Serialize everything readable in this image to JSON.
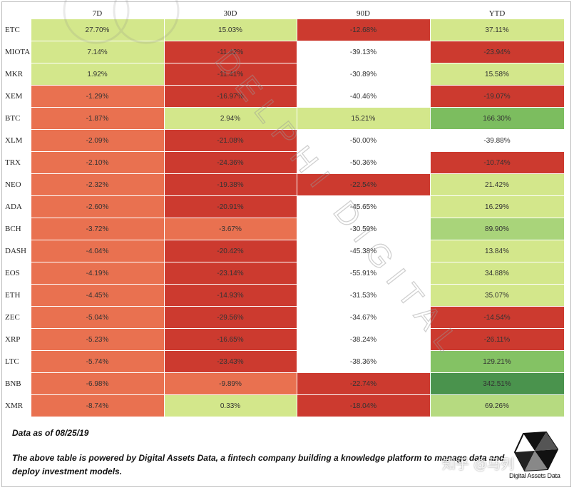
{
  "chart_data": {
    "type": "table",
    "title": "",
    "columns": [
      "7D",
      "30D",
      "90D",
      "YTD"
    ],
    "rows": [
      {
        "coin": "ETC",
        "values": [
          "27.70%",
          "15.03%",
          "-12.68%",
          "37.11%"
        ],
        "colors": [
          "#d3e78b",
          "#d3e78b",
          "#cc3a2f",
          "#d3e78b"
        ]
      },
      {
        "coin": "MIOTA",
        "values": [
          "7.14%",
          "-11.42%",
          "-39.13%",
          "-23.94%"
        ],
        "colors": [
          "#d3e78b",
          "#cc3a2f",
          "#ffffff",
          "#cc3a2f"
        ]
      },
      {
        "coin": "MKR",
        "values": [
          "1.92%",
          "-11.41%",
          "-30.89%",
          "15.58%"
        ],
        "colors": [
          "#d3e78b",
          "#cc3a2f",
          "#ffffff",
          "#d3e78b"
        ]
      },
      {
        "coin": "XEM",
        "values": [
          "-1.29%",
          "-16.97%",
          "-40.46%",
          "-19.07%"
        ],
        "colors": [
          "#e97150",
          "#cc3a2f",
          "#ffffff",
          "#cc3a2f"
        ]
      },
      {
        "coin": "BTC",
        "values": [
          "-1.87%",
          "2.94%",
          "15.21%",
          "166.30%"
        ],
        "colors": [
          "#e97150",
          "#d3e78b",
          "#d3e78b",
          "#7cbd5f"
        ]
      },
      {
        "coin": "XLM",
        "values": [
          "-2.09%",
          "-21.08%",
          "-50.00%",
          "-39.88%"
        ],
        "colors": [
          "#e97150",
          "#cc3a2f",
          "#ffffff",
          "#ffffff"
        ]
      },
      {
        "coin": "TRX",
        "values": [
          "-2.10%",
          "-24.36%",
          "-50.36%",
          "-10.74%"
        ],
        "colors": [
          "#e97150",
          "#cc3a2f",
          "#ffffff",
          "#cc3a2f"
        ]
      },
      {
        "coin": "NEO",
        "values": [
          "-2.32%",
          "-19.38%",
          "-22.54%",
          "21.42%"
        ],
        "colors": [
          "#e97150",
          "#cc3a2f",
          "#cc3a2f",
          "#d3e78b"
        ]
      },
      {
        "coin": "ADA",
        "values": [
          "-2.60%",
          "-20.91%",
          "-45.65%",
          "16.29%"
        ],
        "colors": [
          "#e97150",
          "#cc3a2f",
          "#ffffff",
          "#d3e78b"
        ]
      },
      {
        "coin": "BCH",
        "values": [
          "-3.72%",
          "-3.67%",
          "-30.59%",
          "89.90%"
        ],
        "colors": [
          "#e97150",
          "#e97150",
          "#ffffff",
          "#a9d47a"
        ]
      },
      {
        "coin": "DASH",
        "values": [
          "-4.04%",
          "-20.42%",
          "-45.38%",
          "13.84%"
        ],
        "colors": [
          "#e97150",
          "#cc3a2f",
          "#ffffff",
          "#d3e78b"
        ]
      },
      {
        "coin": "EOS",
        "values": [
          "-4.19%",
          "-23.14%",
          "-55.91%",
          "34.88%"
        ],
        "colors": [
          "#e97150",
          "#cc3a2f",
          "#ffffff",
          "#d3e78b"
        ]
      },
      {
        "coin": "ETH",
        "values": [
          "-4.45%",
          "-14.93%",
          "-31.53%",
          "35.07%"
        ],
        "colors": [
          "#e97150",
          "#cc3a2f",
          "#ffffff",
          "#d3e78b"
        ]
      },
      {
        "coin": "ZEC",
        "values": [
          "-5.04%",
          "-29.56%",
          "-34.67%",
          "-14.54%"
        ],
        "colors": [
          "#e97150",
          "#cc3a2f",
          "#ffffff",
          "#cc3a2f"
        ]
      },
      {
        "coin": "XRP",
        "values": [
          "-5.23%",
          "-16.65%",
          "-38.24%",
          "-26.11%"
        ],
        "colors": [
          "#e97150",
          "#cc3a2f",
          "#ffffff",
          "#cc3a2f"
        ]
      },
      {
        "coin": "LTC",
        "values": [
          "-5.74%",
          "-23.43%",
          "-38.36%",
          "129.21%"
        ],
        "colors": [
          "#e97150",
          "#cc3a2f",
          "#ffffff",
          "#84c264"
        ]
      },
      {
        "coin": "BNB",
        "values": [
          "-6.98%",
          "-9.89%",
          "-22.74%",
          "342.51%"
        ],
        "colors": [
          "#e97150",
          "#e97150",
          "#cc3a2f",
          "#4a934d"
        ]
      },
      {
        "coin": "XMR",
        "values": [
          "-8.74%",
          "0.33%",
          "-18.04%",
          "69.26%"
        ],
        "colors": [
          "#e97150",
          "#d3e78b",
          "#cc3a2f",
          "#b6da80"
        ]
      }
    ]
  },
  "notes": {
    "as_of": "Data as of 08/25/19",
    "description": "The above table is powered by Digital Assets Data, a fintech company building a knowledge platform to manage data and deploy investment models."
  },
  "watermarks": {
    "diagonal": "DELPHI DIGITAL",
    "zhihu": "知乎 @马列"
  },
  "logo": {
    "text": "Digital Assets Data"
  }
}
